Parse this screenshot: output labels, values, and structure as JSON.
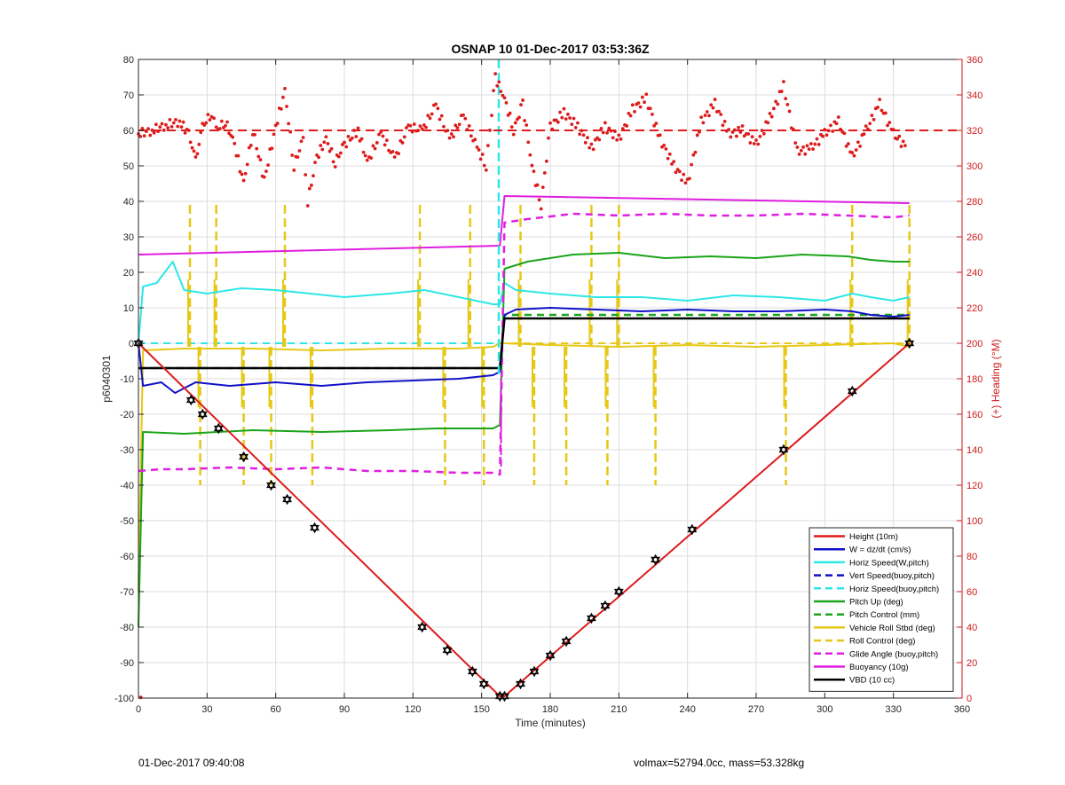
{
  "footer": {
    "left": "01-Dec-2017 09:40:08",
    "right": "volmax=52794.0cc, mass=53.328kg"
  },
  "chart_data": {
    "type": "line",
    "title": "OSNAP 10 01-Dec-2017 03:53:36Z",
    "xlabel": "Time (minutes)",
    "ylabel": "p6040301",
    "y2label": "(+) Heading (°M)",
    "xlim": [
      0,
      360
    ],
    "ylim": [
      -100,
      80
    ],
    "y2lim": [
      0,
      360
    ],
    "xticks": [
      0,
      30,
      60,
      90,
      120,
      150,
      180,
      210,
      240,
      270,
      300,
      330,
      360
    ],
    "yticks": [
      -100,
      -90,
      -80,
      -70,
      -60,
      -50,
      -40,
      -30,
      -20,
      -10,
      0,
      10,
      20,
      30,
      40,
      50,
      60,
      70,
      80
    ],
    "y2ticks": [
      0,
      20,
      40,
      60,
      80,
      100,
      120,
      140,
      160,
      180,
      200,
      220,
      240,
      260,
      280,
      300,
      320,
      340,
      360
    ],
    "grid": true,
    "legend_position": "bottom-right",
    "colors": {
      "red": "#dd1c1c",
      "blue": "#1010c8",
      "cyan": "#2ee6e6",
      "green": "#1aa51a",
      "yellow": "#e6c817",
      "magenta": "#e01ee0",
      "black": "#000000",
      "axis_right": "#cc1a1a"
    },
    "series": [
      {
        "name": "Height (10m)",
        "color": "#dd1c1c",
        "style": "solid",
        "x": [
          0,
          158,
          160,
          337
        ],
        "y": [
          0,
          -99.5,
          -99.5,
          0
        ]
      },
      {
        "name": "W = dz/dt (cm/s)",
        "color": "#1010c8",
        "style": "solid",
        "x": [
          0,
          2,
          10,
          16,
          25,
          40,
          60,
          80,
          100,
          120,
          140,
          155,
          158,
          160,
          165,
          180,
          200,
          220,
          240,
          260,
          280,
          300,
          312,
          320,
          330,
          337
        ],
        "y": [
          0,
          -12,
          -11,
          -14,
          -11,
          -12,
          -11,
          -12,
          -11,
          -10.5,
          -10,
          -9,
          -8,
          8,
          9.5,
          10,
          9.5,
          9,
          9.5,
          9,
          9,
          9.5,
          9,
          8,
          7.5,
          8
        ]
      },
      {
        "name": "Horiz Speed(W,pitch)",
        "color": "#2ee6e6",
        "style": "solid",
        "x": [
          0,
          2,
          8,
          15,
          20,
          30,
          45,
          60,
          75,
          90,
          110,
          125,
          140,
          155,
          158,
          160,
          165,
          180,
          200,
          220,
          240,
          260,
          280,
          300,
          312,
          320,
          330,
          337
        ],
        "y": [
          0,
          16,
          17,
          23,
          15,
          14,
          15.5,
          15,
          14,
          13,
          14,
          15,
          13,
          11,
          11,
          17,
          15,
          14,
          13,
          13,
          12,
          13.5,
          13,
          12,
          14,
          13,
          12,
          13
        ]
      },
      {
        "name": "Vert Speed(buoy,pitch)",
        "color": "#1010c8",
        "style": "dashed",
        "x": [
          0,
          157
        ],
        "y": [
          0,
          0
        ]
      },
      {
        "name": "Horiz Speed(buoy,pitch)",
        "color": "#2ee6e6",
        "style": "dashed",
        "x": [
          0,
          157
        ],
        "y": [
          0,
          0
        ]
      },
      {
        "name": "Pitch Up (deg)",
        "color": "#1aa51a",
        "style": "solid",
        "x": [
          0,
          2,
          20,
          50,
          80,
          110,
          130,
          145,
          155,
          158,
          160,
          170,
          190,
          210,
          230,
          250,
          270,
          290,
          310,
          320,
          330,
          337
        ],
        "y": [
          -80,
          -25,
          -25.5,
          -24.5,
          -25,
          -24.5,
          -24,
          -24,
          -24,
          -23,
          21,
          23,
          25,
          25.5,
          24,
          24.5,
          24,
          25,
          24.5,
          23.5,
          23,
          23
        ]
      },
      {
        "name": "Pitch Control (mm)",
        "color": "#1aa51a",
        "style": "dashed",
        "x": [
          0,
          158,
          160,
          337
        ],
        "y": [
          -7,
          -7,
          8,
          8
        ]
      },
      {
        "name": "Vehicle Roll Stbd (deg)",
        "color": "#e6c817",
        "style": "solid",
        "x": [
          0,
          2,
          20,
          50,
          80,
          110,
          140,
          155,
          158,
          160,
          180,
          210,
          240,
          270,
          300,
          330,
          337
        ],
        "y": [
          -70,
          -2,
          -1.5,
          -1.5,
          -2,
          -1.5,
          -1.5,
          -1,
          0,
          0,
          -0.5,
          -1,
          -0.5,
          -1,
          -0.5,
          0,
          -1
        ]
      },
      {
        "name": "Roll Control (deg)",
        "color": "#e6c817",
        "style": "dashed",
        "x": [
          0,
          337
        ],
        "y": [
          0,
          0
        ]
      },
      {
        "name": "Glide Angle (buoy,pitch)",
        "color": "#e01ee0",
        "style": "dashed",
        "x": [
          0,
          10,
          20,
          40,
          60,
          80,
          100,
          120,
          140,
          156,
          158,
          160,
          170,
          190,
          210,
          230,
          250,
          270,
          290,
          310,
          330,
          337
        ],
        "y": [
          -36,
          -35.5,
          -35.5,
          -35,
          -35.5,
          -35,
          -36,
          -36,
          -36.5,
          -36.5,
          -37,
          34,
          35,
          36.5,
          36,
          36.5,
          36,
          36,
          36.5,
          36,
          35.5,
          36
        ]
      },
      {
        "name": "Buoyancy (10g)",
        "color": "#e01ee0",
        "style": "solid",
        "x": [
          0,
          158,
          160,
          337
        ],
        "y": [
          25,
          27.5,
          41.5,
          39.5
        ]
      },
      {
        "name": "VBD (10 cc)",
        "color": "#000000",
        "style": "solid",
        "x": [
          0,
          158,
          160,
          337
        ],
        "y": [
          -7,
          -7,
          7,
          7
        ]
      }
    ],
    "heading": {
      "name": "(+) Heading (°M)",
      "axis": "right",
      "color": "#dd1c1c",
      "reference": 320,
      "x": [
        0,
        6,
        12,
        18,
        22,
        25,
        28,
        32,
        34,
        38,
        42,
        46,
        50,
        55,
        60,
        64,
        68,
        72,
        74,
        78,
        82,
        86,
        90,
        96,
        100,
        106,
        112,
        118,
        124,
        130,
        136,
        142,
        148,
        152,
        156,
        160,
        164,
        168,
        172,
        176,
        180,
        186,
        192,
        198,
        204,
        210,
        216,
        222,
        228,
        234,
        240,
        246,
        252,
        258,
        264,
        270,
        276,
        282,
        288,
        294,
        300,
        306,
        312,
        318,
        324,
        330,
        336
      ],
      "y": [
        318,
        320,
        323,
        325,
        318,
        303,
        322,
        330,
        320,
        325,
        312,
        290,
        320,
        292,
        322,
        342,
        300,
        315,
        280,
        305,
        315,
        302,
        312,
        320,
        302,
        318,
        304,
        322,
        320,
        334,
        315,
        328,
        310,
        300,
        350,
        338,
        320,
        335,
        300,
        278,
        322,
        330,
        322,
        310,
        322,
        315,
        332,
        338,
        315,
        300,
        290,
        325,
        335,
        318,
        320,
        312,
        327,
        345,
        308,
        310,
        318,
        325,
        305,
        320,
        335,
        318,
        310
      ]
    },
    "yellow_spikes": [
      {
        "x": 22.5,
        "dir": "up"
      },
      {
        "x": 27,
        "dir": "down"
      },
      {
        "x": 34,
        "dir": "up"
      },
      {
        "x": 46,
        "dir": "down"
      },
      {
        "x": 58,
        "dir": "down"
      },
      {
        "x": 64,
        "dir": "up"
      },
      {
        "x": 76,
        "dir": "down"
      },
      {
        "x": 123,
        "dir": "up"
      },
      {
        "x": 134,
        "dir": "down"
      },
      {
        "x": 145,
        "dir": "up"
      },
      {
        "x": 151,
        "dir": "down"
      },
      {
        "x": 167,
        "dir": "up"
      },
      {
        "x": 173,
        "dir": "down"
      },
      {
        "x": 187,
        "dir": "down"
      },
      {
        "x": 198,
        "dir": "up"
      },
      {
        "x": 205,
        "dir": "down"
      },
      {
        "x": 210,
        "dir": "up"
      },
      {
        "x": 226,
        "dir": "down"
      },
      {
        "x": 283,
        "dir": "down"
      },
      {
        "x": 312,
        "dir": "up"
      },
      {
        "x": 337,
        "dir": "up"
      }
    ],
    "markers": {
      "symbol": "hexagram",
      "x": [
        0,
        23,
        28,
        35,
        46,
        58,
        65,
        77,
        124,
        135,
        146,
        151,
        158,
        160,
        167,
        173,
        180,
        187,
        198,
        204,
        210,
        226,
        242,
        282,
        312,
        337
      ],
      "y": [
        0,
        -16,
        -20,
        -24,
        -32,
        -40,
        -44,
        -52,
        -80,
        -86.5,
        -92.5,
        -96,
        -99.5,
        -99.5,
        -96,
        -92.5,
        -88,
        -84,
        -77.5,
        -74,
        -70,
        -61,
        -52.5,
        -30,
        -13.5,
        0
      ]
    }
  }
}
